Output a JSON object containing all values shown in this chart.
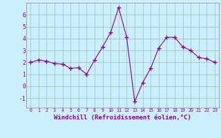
{
  "x": [
    0,
    1,
    2,
    3,
    4,
    5,
    6,
    7,
    8,
    9,
    10,
    11,
    12,
    13,
    14,
    15,
    16,
    17,
    18,
    19,
    20,
    21,
    22,
    23
  ],
  "y": [
    2.0,
    2.2,
    2.1,
    1.9,
    1.85,
    1.5,
    1.55,
    1.0,
    2.2,
    3.3,
    4.5,
    6.6,
    4.1,
    -1.3,
    0.3,
    1.5,
    3.2,
    4.1,
    4.1,
    3.3,
    3.0,
    2.4,
    2.3,
    2.0
  ],
  "line_color": "#880088",
  "marker": "+",
  "marker_size": 4,
  "bg_color": "#cceeff",
  "grid_color": "#99ccbb",
  "xlabel": "Windchill (Refroidissement éolien,°C)",
  "xlabel_fontsize": 6.5,
  "xtick_labels": [
    "0",
    "1",
    "2",
    "3",
    "4",
    "5",
    "6",
    "7",
    "8",
    "9",
    "10",
    "11",
    "12",
    "13",
    "14",
    "15",
    "16",
    "17",
    "18",
    "19",
    "20",
    "21",
    "22",
    "23"
  ],
  "ytick_labels": [
    "-1",
    "0",
    "1",
    "2",
    "3",
    "4",
    "5",
    "6"
  ],
  "yticks": [
    -1,
    0,
    1,
    2,
    3,
    4,
    5,
    6
  ],
  "ylim": [
    -1.8,
    7.0
  ],
  "xlim": [
    -0.5,
    23.5
  ]
}
